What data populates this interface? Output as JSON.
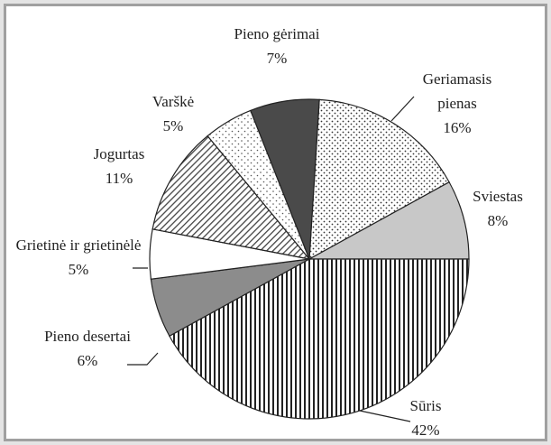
{
  "chart_data": {
    "type": "pie",
    "categories": [
      "Geriamasis pienas",
      "Sviestas",
      "Sūris",
      "Pieno desertai",
      "Grietinė ir grietinėlė",
      "Jogurtas",
      "Varškė",
      "Pieno gėrimai"
    ],
    "values": [
      16,
      8,
      42,
      6,
      5,
      11,
      5,
      7
    ],
    "value_labels": [
      "16%",
      "8%",
      "42%",
      "6%",
      "5%",
      "11%",
      "5%",
      "7%"
    ],
    "colors": [
      "#d8d8d8",
      "#c8c8c8",
      "#ffffff",
      "#8c8c8c",
      "#ffffff",
      "#ffffff",
      "#ffffff",
      "#4a4a4a"
    ]
  }
}
